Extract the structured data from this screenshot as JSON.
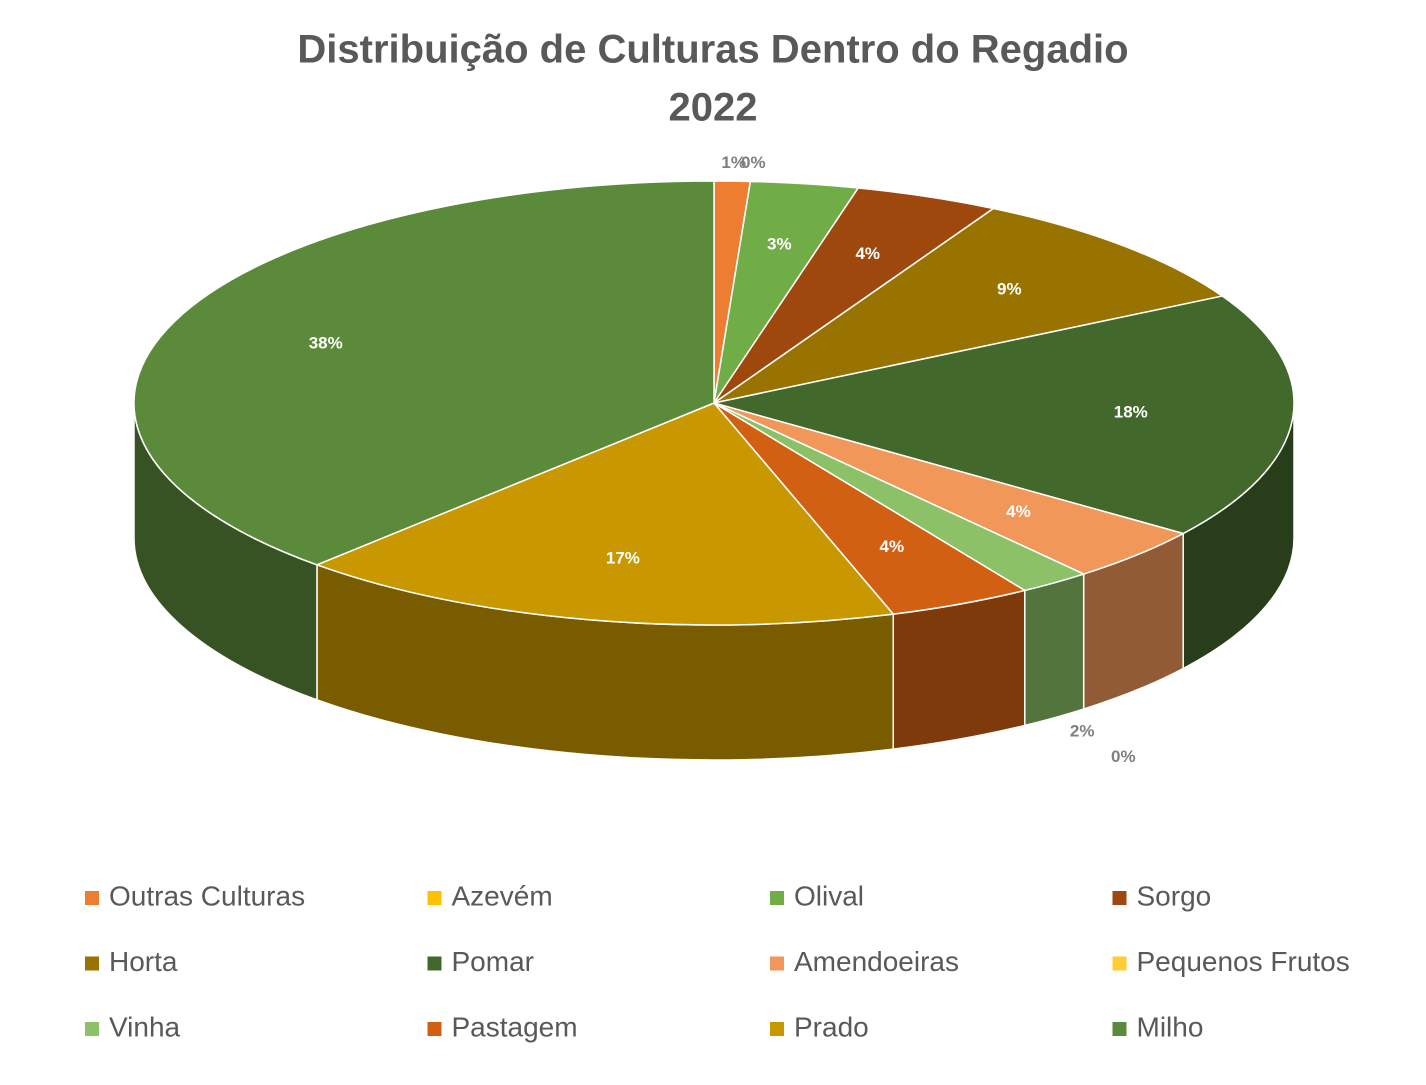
{
  "chart_data": {
    "type": "pie3d",
    "title": "Distribuição de Culturas Dentro do Regadio",
    "subtitle": "2022",
    "categories": [
      "Outras Culturas",
      "Azevém",
      "Olival",
      "Sorgo",
      "Horta",
      "Pomar",
      "Amendoeiras",
      "Pequenos Frutos",
      "Vinha",
      "Pastagem",
      "Prado",
      "Milho"
    ],
    "values": [
      1,
      0,
      3,
      4,
      9,
      18,
      4,
      0,
      2,
      4,
      17,
      38
    ],
    "value_labels": [
      "1%",
      "0%",
      "3%",
      "4%",
      "9%",
      "18%",
      "4%",
      "0%",
      "2%",
      "4%",
      "17%",
      "38%"
    ],
    "colors": [
      "#ED7D31",
      "#FFC000",
      "#70AD47",
      "#9E480E",
      "#997300",
      "#43682B",
      "#F1975A",
      "#FFCD33",
      "#8CC168",
      "#D26012",
      "#C99700",
      "#5B8A3A"
    ]
  }
}
